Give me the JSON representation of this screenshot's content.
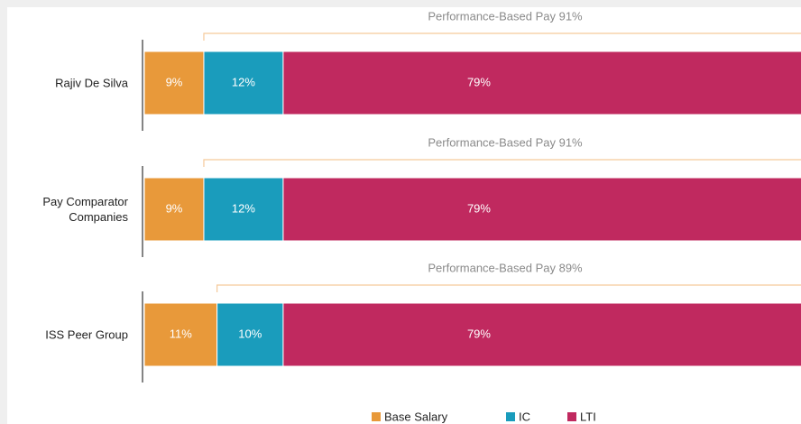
{
  "chart_data": {
    "type": "stacked-bar-horizontal",
    "categories": [
      "Rajiv De Silva",
      "Pay Comparator\nCompanies",
      "ISS Peer Group"
    ],
    "series": [
      {
        "name": "Base Salary",
        "color": "#e8993a",
        "values": [
          9,
          9,
          11
        ],
        "value_labels": [
          "9%",
          "9%",
          "11%"
        ]
      },
      {
        "name": "IC",
        "color": "#1a9cbc",
        "values": [
          12,
          12,
          10
        ],
        "value_labels": [
          "12%",
          "12%",
          "10%"
        ]
      },
      {
        "name": "LTI",
        "color": "#c0295f",
        "values": [
          79,
          79,
          79
        ],
        "value_labels": [
          "79%",
          "79%",
          "79%"
        ]
      }
    ],
    "annotations": [
      "Performance-Based Pay 91%",
      "Performance-Based Pay 91%",
      "Performance-Based Pay 89%"
    ],
    "xlim": [
      0,
      100
    ]
  }
}
